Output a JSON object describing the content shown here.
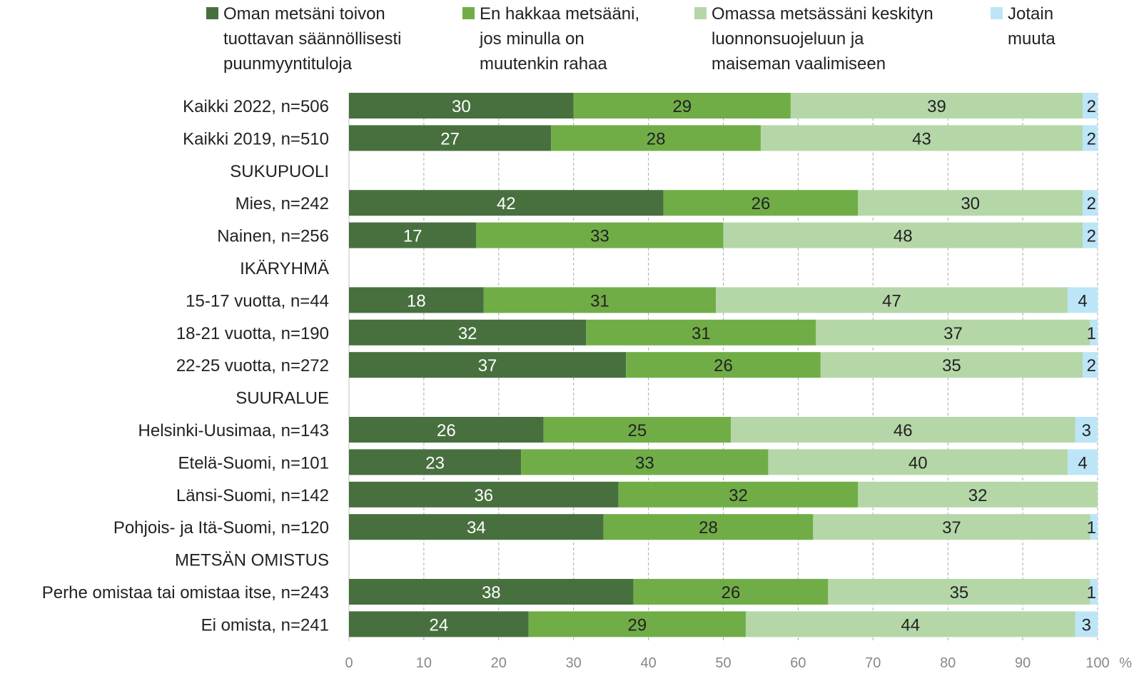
{
  "chart_data": {
    "type": "bar",
    "orientation": "horizontal",
    "stacked": true,
    "legend_position": "top",
    "grid": "vertical dashed",
    "xlim": [
      0,
      100
    ],
    "x_ticks": [
      "0",
      "10",
      "20",
      "30",
      "40",
      "50",
      "60",
      "70",
      "80",
      "90",
      "100"
    ],
    "x_unit": "%",
    "series": [
      {
        "name_lines": [
          "Oman metsäni toivon",
          "tuottavan säännöllisesti",
          "puunmyyntituloja"
        ],
        "color": "#47703e",
        "label_color": "#ffffff"
      },
      {
        "name_lines": [
          "En hakkaa metsääni,",
          "jos minulla on",
          "muutenkin rahaa"
        ],
        "color": "#70ad47",
        "label_color": "#222222"
      },
      {
        "name_lines": [
          "Omassa metsässäni keskityn",
          "luonnonsuojeluun ja",
          "maiseman vaalimiseen"
        ],
        "color": "#b5d7a8",
        "label_color": "#222222"
      },
      {
        "name_lines": [
          "Jotain",
          "muuta"
        ],
        "color": "#bde5f8",
        "label_color": "#222222"
      }
    ],
    "rows": [
      {
        "label": "Kaikki 2022, n=506",
        "values": [
          30,
          29,
          39,
          2
        ]
      },
      {
        "label": "Kaikki 2019, n=510",
        "values": [
          27,
          28,
          43,
          2
        ]
      },
      {
        "label": "SUKUPUOLI",
        "header": true
      },
      {
        "label": "Mies, n=242",
        "values": [
          42,
          26,
          30,
          2
        ]
      },
      {
        "label": "Nainen, n=256",
        "values": [
          17,
          33,
          48,
          2
        ]
      },
      {
        "label": "IKÄRYHMÄ",
        "header": true
      },
      {
        "label": "15-17 vuotta, n=44",
        "values": [
          18,
          31,
          47,
          4
        ]
      },
      {
        "label": "18-21 vuotta, n=190",
        "values": [
          32,
          31,
          37,
          1
        ]
      },
      {
        "label": "22-25 vuotta, n=272",
        "values": [
          37,
          26,
          35,
          2
        ]
      },
      {
        "label": "SUURALUE",
        "header": true
      },
      {
        "label": "Helsinki-Uusimaa, n=143",
        "values": [
          26,
          25,
          46,
          3
        ]
      },
      {
        "label": "Etelä-Suomi, n=101",
        "values": [
          23,
          33,
          40,
          4
        ]
      },
      {
        "label": "Länsi-Suomi, n=142",
        "values": [
          36,
          32,
          32,
          0
        ]
      },
      {
        "label": "Pohjois- ja Itä-Suomi, n=120",
        "values": [
          34,
          28,
          37,
          1
        ]
      },
      {
        "label": "METSÄN OMISTUS",
        "header": true
      },
      {
        "label": "Perhe omistaa tai omistaa itse, n=243",
        "values": [
          38,
          26,
          35,
          1
        ]
      },
      {
        "label": "Ei omista, n=241",
        "values": [
          24,
          29,
          44,
          3
        ]
      }
    ]
  }
}
